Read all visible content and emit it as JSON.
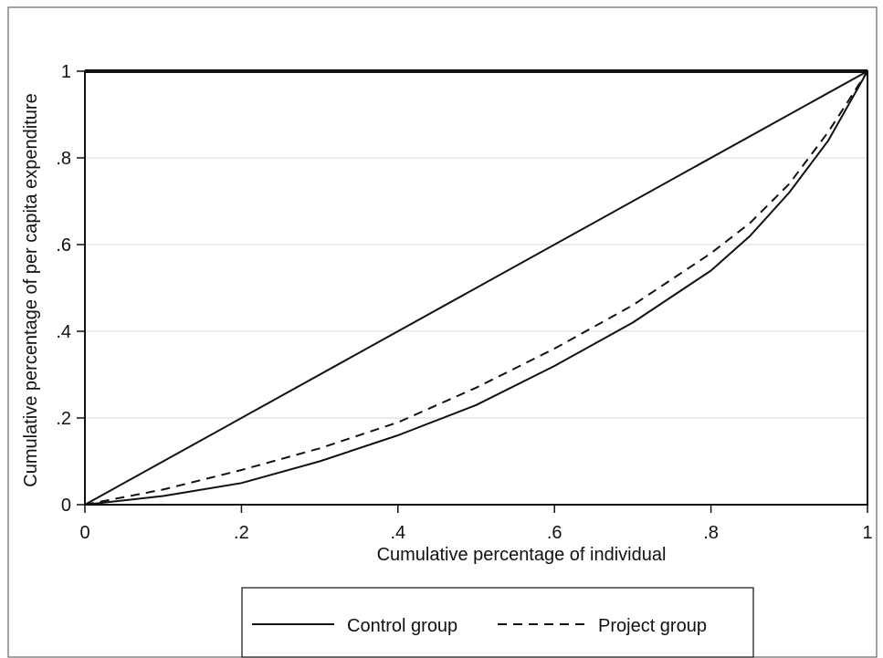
{
  "chart_data": {
    "type": "line",
    "title": "",
    "xlabel": "Cumulative percentage of individual",
    "ylabel": "Cumulative percentage of per capita expenditure",
    "xlim": [
      0,
      1
    ],
    "ylim": [
      0,
      1
    ],
    "grid": "horizontal",
    "x_ticks": [
      {
        "value": 0,
        "label": "0"
      },
      {
        "value": 0.2,
        "label": ".2"
      },
      {
        "value": 0.4,
        "label": ".4"
      },
      {
        "value": 0.6,
        "label": ".6"
      },
      {
        "value": 0.8,
        "label": ".8"
      },
      {
        "value": 1,
        "label": "1"
      }
    ],
    "y_ticks": [
      {
        "value": 0,
        "label": "0"
      },
      {
        "value": 0.2,
        "label": ".2"
      },
      {
        "value": 0.4,
        "label": ".4"
      },
      {
        "value": 0.6,
        "label": ".6"
      },
      {
        "value": 0.8,
        "label": ".8"
      },
      {
        "value": 1,
        "label": "1"
      }
    ],
    "legend_position": "bottom",
    "equality_line": {
      "x": [
        0,
        1
      ],
      "y": [
        0,
        1
      ],
      "style": "solid",
      "color": "#111111"
    },
    "series": [
      {
        "name": "Control group",
        "style": "solid",
        "color": "#111111",
        "x": [
          0,
          0.1,
          0.2,
          0.3,
          0.4,
          0.5,
          0.6,
          0.7,
          0.8,
          0.85,
          0.9,
          0.95,
          1.0
        ],
        "y": [
          0,
          0.02,
          0.05,
          0.1,
          0.16,
          0.23,
          0.32,
          0.42,
          0.54,
          0.62,
          0.72,
          0.84,
          1.0
        ]
      },
      {
        "name": "Project group",
        "style": "dashed",
        "color": "#111111",
        "x": [
          0,
          0.1,
          0.2,
          0.3,
          0.4,
          0.5,
          0.6,
          0.7,
          0.8,
          0.85,
          0.9,
          0.95,
          1.0
        ],
        "y": [
          0,
          0.035,
          0.08,
          0.13,
          0.19,
          0.27,
          0.36,
          0.46,
          0.58,
          0.65,
          0.74,
          0.86,
          1.0
        ]
      }
    ]
  }
}
